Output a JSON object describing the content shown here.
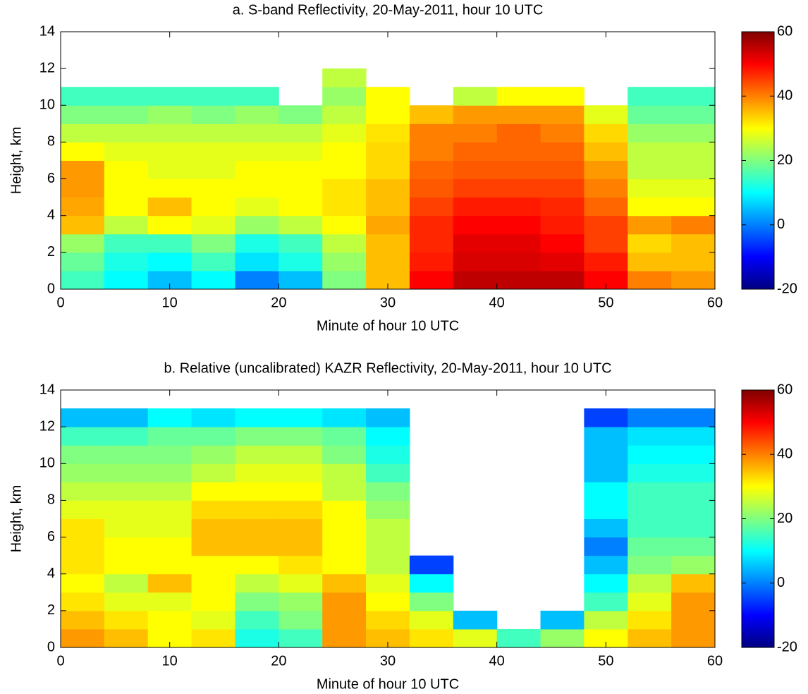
{
  "chart_data": [
    {
      "type": "heatmap",
      "title": "a. S-band Reflectivity, 20-May-2011, hour 10 UTC",
      "xlabel": "Minute of hour 10 UTC",
      "ylabel": "Height, km",
      "xlim": [
        0,
        60
      ],
      "ylim": [
        0,
        14
      ],
      "xticks": [
        0,
        10,
        20,
        30,
        40,
        50,
        60
      ],
      "yticks": [
        0,
        2,
        4,
        6,
        8,
        10,
        12,
        14
      ],
      "colormap": "jet",
      "clim": [
        -20,
        60
      ],
      "cticks": [
        -20,
        0,
        20,
        40,
        60
      ],
      "x_bins": [
        0,
        4,
        8,
        12,
        16,
        20,
        24,
        28,
        32,
        36,
        40,
        44,
        48,
        52,
        56,
        60
      ],
      "y_bins": [
        0,
        1,
        2,
        3,
        4,
        5,
        6,
        7,
        8,
        9,
        10,
        11,
        12,
        13,
        14
      ],
      "z": [
        [
          15,
          10,
          5,
          10,
          0,
          5,
          20,
          35,
          50,
          55,
          55,
          55,
          50,
          40,
          38
        ],
        [
          18,
          12,
          10,
          15,
          8,
          12,
          22,
          35,
          48,
          53,
          53,
          52,
          48,
          35,
          35
        ],
        [
          22,
          15,
          15,
          20,
          12,
          15,
          25,
          35,
          47,
          52,
          52,
          50,
          45,
          33,
          35
        ],
        [
          35,
          25,
          30,
          28,
          22,
          25,
          30,
          37,
          47,
          50,
          50,
          48,
          45,
          38,
          40
        ],
        [
          37,
          30,
          35,
          30,
          28,
          30,
          32,
          35,
          45,
          48,
          48,
          47,
          42,
          30,
          30
        ],
        [
          38,
          30,
          30,
          30,
          30,
          30,
          32,
          35,
          43,
          45,
          45,
          45,
          40,
          28,
          28
        ],
        [
          38,
          30,
          28,
          28,
          30,
          30,
          30,
          33,
          42,
          43,
          43,
          43,
          38,
          25,
          25
        ],
        [
          30,
          28,
          28,
          28,
          28,
          28,
          30,
          33,
          40,
          42,
          42,
          42,
          35,
          25,
          25
        ],
        [
          25,
          25,
          25,
          25,
          25,
          25,
          28,
          32,
          40,
          40,
          42,
          40,
          33,
          22,
          22
        ],
        [
          20,
          20,
          22,
          20,
          22,
          20,
          25,
          30,
          35,
          38,
          38,
          38,
          28,
          18,
          18
        ],
        [
          15,
          15,
          15,
          15,
          15,
          null,
          22,
          30,
          null,
          25,
          30,
          30,
          null,
          15,
          15
        ],
        [
          null,
          null,
          null,
          null,
          null,
          null,
          25,
          null,
          null,
          null,
          null,
          null,
          null,
          null,
          null
        ],
        [
          null,
          null,
          null,
          null,
          null,
          null,
          null,
          null,
          null,
          null,
          null,
          null,
          null,
          null,
          null
        ],
        [
          null,
          null,
          null,
          null,
          null,
          null,
          null,
          null,
          null,
          null,
          null,
          null,
          null,
          null,
          null
        ]
      ]
    },
    {
      "type": "heatmap",
      "title": "b. Relative (uncalibrated) KAZR Reflectivity, 20-May-2011, hour 10 UTC",
      "xlabel": "Minute of hour 10 UTC",
      "ylabel": "Height, km",
      "xlim": [
        0,
        60
      ],
      "ylim": [
        0,
        14
      ],
      "xticks": [
        0,
        10,
        20,
        30,
        40,
        50,
        60
      ],
      "yticks": [
        0,
        2,
        4,
        6,
        8,
        10,
        12,
        14
      ],
      "colormap": "jet",
      "clim": [
        -20,
        60
      ],
      "cticks": [
        -20,
        0,
        20,
        40,
        60
      ],
      "x_bins": [
        0,
        4,
        8,
        12,
        16,
        20,
        24,
        28,
        32,
        36,
        40,
        44,
        48,
        52,
        56,
        60
      ],
      "y_bins": [
        0,
        1,
        2,
        3,
        4,
        5,
        6,
        7,
        8,
        9,
        10,
        11,
        12,
        13,
        14
      ],
      "z": [
        [
          38,
          35,
          30,
          32,
          12,
          15,
          38,
          35,
          32,
          28,
          15,
          22,
          30,
          35,
          38
        ],
        [
          35,
          32,
          30,
          28,
          15,
          20,
          38,
          33,
          28,
          5,
          null,
          5,
          25,
          32,
          38
        ],
        [
          32,
          28,
          28,
          30,
          20,
          22,
          38,
          30,
          20,
          null,
          null,
          null,
          15,
          28,
          38
        ],
        [
          30,
          25,
          35,
          30,
          25,
          28,
          35,
          28,
          10,
          null,
          null,
          null,
          10,
          25,
          35
        ],
        [
          32,
          30,
          30,
          30,
          30,
          32,
          30,
          25,
          -5,
          null,
          null,
          null,
          5,
          20,
          22
        ],
        [
          32,
          30,
          30,
          35,
          35,
          35,
          30,
          25,
          null,
          null,
          null,
          null,
          0,
          18,
          18
        ],
        [
          32,
          28,
          28,
          35,
          35,
          35,
          30,
          25,
          null,
          null,
          null,
          null,
          5,
          15,
          15
        ],
        [
          28,
          28,
          28,
          33,
          33,
          33,
          30,
          22,
          null,
          null,
          null,
          null,
          10,
          15,
          15
        ],
        [
          25,
          25,
          25,
          30,
          30,
          30,
          25,
          20,
          null,
          null,
          null,
          null,
          10,
          15,
          15
        ],
        [
          22,
          22,
          22,
          25,
          28,
          28,
          25,
          15,
          null,
          null,
          null,
          null,
          5,
          12,
          12
        ],
        [
          20,
          20,
          20,
          22,
          25,
          25,
          20,
          12,
          null,
          null,
          null,
          null,
          5,
          10,
          10
        ],
        [
          15,
          15,
          18,
          18,
          20,
          20,
          18,
          10,
          null,
          null,
          null,
          null,
          5,
          8,
          8
        ],
        [
          5,
          5,
          10,
          8,
          10,
          10,
          8,
          5,
          null,
          null,
          null,
          null,
          -5,
          0,
          0
        ],
        [
          null,
          null,
          null,
          null,
          null,
          null,
          null,
          null,
          null,
          null,
          null,
          null,
          null,
          null,
          null
        ]
      ]
    }
  ]
}
